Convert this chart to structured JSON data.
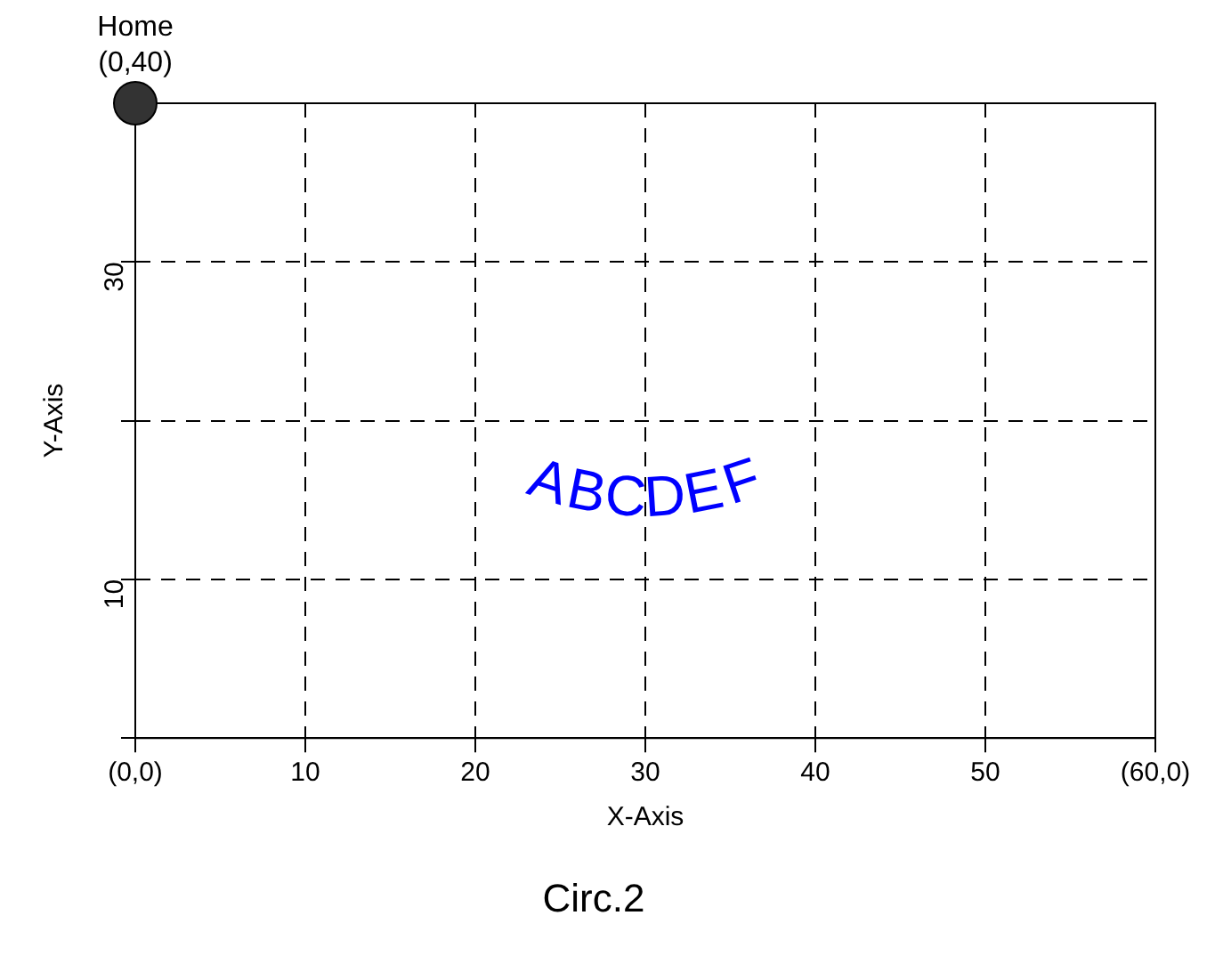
{
  "chart_data": {
    "type": "scatter",
    "title": "Circ.2",
    "xlabel": "X-Axis",
    "ylabel": "Y-Axis",
    "series": [
      {
        "color": "#333333",
        "x": [
          0
        ],
        "values": [
          40
        ]
      }
    ],
    "xlim": [
      0,
      60
    ],
    "ylim": [
      0,
      40
    ],
    "xticks": [
      {
        "value": 0,
        "label": "(0,0)"
      },
      10,
      20,
      30,
      40,
      50,
      {
        "value": 60,
        "label": "(60,0)"
      }
    ],
    "yticks": [
      {
        "value": 0,
        "label": null
      },
      10,
      {
        "value": 20,
        "label": null
      },
      30,
      {
        "value": 40,
        "label": null
      }
    ],
    "grid": true,
    "marker": "circle",
    "annotations": [
      {
        "text": "Home\n(0,40)",
        "x": 0,
        "y": 40
      },
      "ABCDEF"
    ]
  }
}
